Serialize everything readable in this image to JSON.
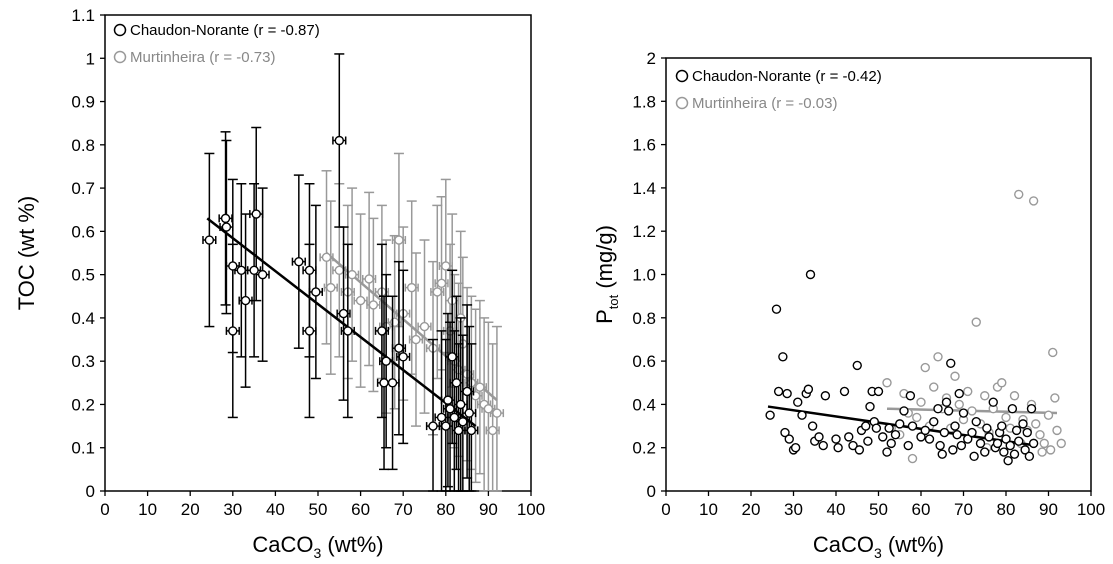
{
  "chart_data": [
    {
      "type": "scatter",
      "xlabel": "CaCO",
      "xlabel_sub": "3",
      "xlabel_unit": " (wt%)",
      "ylabel": "TOC (wt %)",
      "xlim": [
        0,
        100
      ],
      "ylim": [
        0,
        1.1
      ],
      "xticks": [
        "0",
        "10",
        "20",
        "30",
        "40",
        "50",
        "60",
        "70",
        "80",
        "90",
        "100"
      ],
      "yticks": [
        "0",
        "0.1",
        "0.2",
        "0.3",
        "0.4",
        "0.5",
        "0.6",
        "0.7",
        "0.8",
        "0.9",
        "1",
        "1.1"
      ],
      "grid": false,
      "legend_position": "top-left",
      "series": [
        {
          "name": "Chaudon-Norante (r = -0.87)",
          "color": "#000000",
          "fit": [
            [
              24,
              0.63
            ],
            [
              87,
              0.15
            ]
          ],
          "points": [
            [
              24.5,
              0.58,
              0.2
            ],
            [
              28.3,
              0.63,
              0.2
            ],
            [
              28.5,
              0.61,
              0.2
            ],
            [
              30,
              0.52,
              0.2
            ],
            [
              30,
              0.37,
              0.2
            ],
            [
              32,
              0.51,
              0.2
            ],
            [
              33,
              0.44,
              0.2
            ],
            [
              35,
              0.51,
              0.2
            ],
            [
              35.5,
              0.64,
              0.2
            ],
            [
              37,
              0.5,
              0.2
            ],
            [
              45.5,
              0.53,
              0.2
            ],
            [
              48,
              0.51,
              0.2
            ],
            [
              48,
              0.37,
              0.2
            ],
            [
              49.5,
              0.46,
              0.2
            ],
            [
              55,
              0.81,
              0.2
            ],
            [
              56,
              0.41,
              0.2
            ],
            [
              57,
              0.37,
              0.2
            ],
            [
              65,
              0.37,
              0.2
            ],
            [
              65.5,
              0.25,
              0.2
            ],
            [
              66,
              0.3,
              0.2
            ],
            [
              67.5,
              0.25,
              0.2
            ],
            [
              69,
              0.33,
              0.2
            ],
            [
              70,
              0.31,
              0.2
            ],
            [
              77,
              0.15,
              0.2
            ],
            [
              79,
              0.17,
              0.2
            ],
            [
              80,
              0.15,
              0.2
            ],
            [
              80.5,
              0.21,
              0.2
            ],
            [
              81,
              0.19,
              0.2
            ],
            [
              81.5,
              0.31,
              0.2
            ],
            [
              82,
              0.17,
              0.2
            ],
            [
              82.5,
              0.25,
              0.2
            ],
            [
              83,
              0.14,
              0.2
            ],
            [
              83.5,
              0.2,
              0.2
            ],
            [
              84,
              0.16,
              0.2
            ],
            [
              85,
              0.23,
              0.2
            ],
            [
              85.5,
              0.18,
              0.2
            ],
            [
              86,
              0.14,
              0.2
            ]
          ]
        },
        {
          "name": "Murtinheira (r = -0.73)",
          "color": "#999999",
          "fit": [
            [
              52,
              0.55
            ],
            [
              92,
              0.21
            ]
          ],
          "points": [
            [
              52,
              0.54,
              0.2
            ],
            [
              53,
              0.47,
              0.2
            ],
            [
              55,
              0.51,
              0.2
            ],
            [
              57,
              0.46,
              0.2
            ],
            [
              58,
              0.5,
              0.2
            ],
            [
              60,
              0.44,
              0.2
            ],
            [
              62,
              0.49,
              0.2
            ],
            [
              63,
              0.43,
              0.2
            ],
            [
              65,
              0.46,
              0.2
            ],
            [
              66,
              0.38,
              0.2
            ],
            [
              68,
              0.39,
              0.2
            ],
            [
              69,
              0.58,
              0.2
            ],
            [
              70,
              0.41,
              0.2
            ],
            [
              72,
              0.47,
              0.2
            ],
            [
              73,
              0.35,
              0.2
            ],
            [
              75,
              0.38,
              0.2
            ],
            [
              77,
              0.33,
              0.2
            ],
            [
              78,
              0.46,
              0.2
            ],
            [
              79,
              0.48,
              0.2
            ],
            [
              80,
              0.52,
              0.2
            ],
            [
              81,
              0.37,
              0.2
            ],
            [
              82,
              0.3,
              0.2
            ],
            [
              83,
              0.28,
              0.2
            ],
            [
              84,
              0.34,
              0.2
            ],
            [
              85,
              0.27,
              0.2
            ],
            [
              86,
              0.25,
              0.2
            ],
            [
              87,
              0.22,
              0.2
            ],
            [
              88,
              0.24,
              0.2
            ],
            [
              89,
              0.2,
              0.2
            ],
            [
              90,
              0.19,
              0.2
            ],
            [
              91,
              0.14,
              0.2
            ],
            [
              92,
              0.18,
              0.2
            ],
            [
              83.5,
              0.4,
              0.2
            ],
            [
              81.5,
              0.44,
              0.2
            ]
          ]
        }
      ]
    },
    {
      "type": "scatter",
      "xlabel": "CaCO",
      "xlabel_sub": "3",
      "xlabel_unit": " (wt%)",
      "ylabel": "P",
      "ylabel_sub": "tot",
      "ylabel_unit": " (mg/g)",
      "xlim": [
        0,
        100
      ],
      "ylim": [
        0,
        2
      ],
      "xticks": [
        "0",
        "10",
        "20",
        "30",
        "40",
        "50",
        "60",
        "70",
        "80",
        "90",
        "100"
      ],
      "yticks": [
        "0",
        "0.2",
        "0.4",
        "0.6",
        "0.8",
        "1.0",
        "1.2",
        "1.4",
        "1.6",
        "1.8",
        "2"
      ],
      "grid": false,
      "legend_position": "top-left",
      "series": [
        {
          "name": "Chaudon-Norante (r = -0.42)",
          "color": "#000000",
          "fit": [
            [
              24,
              0.39
            ],
            [
              87,
              0.21
            ]
          ],
          "points": [
            [
              24.5,
              0.35
            ],
            [
              26,
              0.84
            ],
            [
              26.5,
              0.46
            ],
            [
              27.5,
              0.62
            ],
            [
              28,
              0.27
            ],
            [
              28.5,
              0.45
            ],
            [
              29,
              0.24
            ],
            [
              30,
              0.19
            ],
            [
              30.5,
              0.2
            ],
            [
              31,
              0.41
            ],
            [
              32,
              0.35
            ],
            [
              33,
              0.45
            ],
            [
              33.5,
              0.47
            ],
            [
              34,
              1.0
            ],
            [
              34.5,
              0.3
            ],
            [
              35,
              0.23
            ],
            [
              36,
              0.25
            ],
            [
              37,
              0.21
            ],
            [
              37.5,
              0.44
            ],
            [
              40,
              0.24
            ],
            [
              40.5,
              0.2
            ],
            [
              42,
              0.46
            ],
            [
              43,
              0.25
            ],
            [
              44,
              0.21
            ],
            [
              45,
              0.58
            ],
            [
              45.5,
              0.19
            ],
            [
              46,
              0.28
            ],
            [
              47,
              0.3
            ],
            [
              47.5,
              0.23
            ],
            [
              48,
              0.39
            ],
            [
              48.5,
              0.46
            ],
            [
              49,
              0.32
            ],
            [
              49.5,
              0.29
            ],
            [
              50,
              0.46
            ],
            [
              51,
              0.25
            ],
            [
              52,
              0.18
            ],
            [
              52.5,
              0.29
            ],
            [
              53,
              0.22
            ],
            [
              54,
              0.26
            ],
            [
              55,
              0.31
            ],
            [
              56,
              0.37
            ],
            [
              57,
              0.21
            ],
            [
              57.5,
              0.44
            ],
            [
              58,
              0.3
            ],
            [
              60,
              0.25
            ],
            [
              61,
              0.28
            ],
            [
              62,
              0.24
            ],
            [
              63,
              0.32
            ],
            [
              64,
              0.38
            ],
            [
              64.5,
              0.21
            ],
            [
              65,
              0.17
            ],
            [
              65.5,
              0.27
            ],
            [
              66,
              0.41
            ],
            [
              66.5,
              0.37
            ],
            [
              67,
              0.59
            ],
            [
              67.5,
              0.19
            ],
            [
              68,
              0.3
            ],
            [
              68.5,
              0.26
            ],
            [
              69,
              0.45
            ],
            [
              69.5,
              0.21
            ],
            [
              70,
              0.36
            ],
            [
              71,
              0.24
            ],
            [
              72,
              0.27
            ],
            [
              72.5,
              0.16
            ],
            [
              73,
              0.32
            ],
            [
              74,
              0.22
            ],
            [
              75,
              0.18
            ],
            [
              75.5,
              0.29
            ],
            [
              76,
              0.25
            ],
            [
              77,
              0.41
            ],
            [
              77.5,
              0.2
            ],
            [
              78,
              0.22
            ],
            [
              78.5,
              0.27
            ],
            [
              79,
              0.3
            ],
            [
              79.5,
              0.18
            ],
            [
              80,
              0.24
            ],
            [
              80.5,
              0.14
            ],
            [
              81,
              0.21
            ],
            [
              81.5,
              0.38
            ],
            [
              82,
              0.17
            ],
            [
              82.5,
              0.28
            ],
            [
              83,
              0.23
            ],
            [
              84,
              0.31
            ],
            [
              84.5,
              0.19
            ],
            [
              85,
              0.27
            ],
            [
              85.5,
              0.16
            ],
            [
              86,
              0.38
            ],
            [
              86.5,
              0.22
            ]
          ]
        },
        {
          "name": "Murtinheira (r = -0.03)",
          "color": "#999999",
          "fit": [
            [
              52,
              0.38
            ],
            [
              92,
              0.36
            ]
          ],
          "points": [
            [
              52,
              0.5
            ],
            [
              53,
              0.29
            ],
            [
              55,
              0.26
            ],
            [
              56,
              0.45
            ],
            [
              57,
              0.36
            ],
            [
              58,
              0.15
            ],
            [
              59,
              0.34
            ],
            [
              60,
              0.41
            ],
            [
              61,
              0.57
            ],
            [
              62,
              0.3
            ],
            [
              63,
              0.48
            ],
            [
              64,
              0.62
            ],
            [
              65,
              0.38
            ],
            [
              66,
              0.43
            ],
            [
              67,
              0.29
            ],
            [
              68,
              0.53
            ],
            [
              69,
              0.4
            ],
            [
              70,
              0.33
            ],
            [
              71,
              0.46
            ],
            [
              72,
              0.37
            ],
            [
              73,
              0.78
            ],
            [
              74,
              0.31
            ],
            [
              75,
              0.44
            ],
            [
              76,
              0.27
            ],
            [
              77,
              0.38
            ],
            [
              78,
              0.48
            ],
            [
              79,
              0.5
            ],
            [
              80,
              0.34
            ],
            [
              81,
              0.29
            ],
            [
              82,
              0.44
            ],
            [
              83,
              1.37
            ],
            [
              84,
              0.33
            ],
            [
              85,
              0.28
            ],
            [
              86,
              0.4
            ],
            [
              86.5,
              1.34
            ],
            [
              87,
              0.31
            ],
            [
              88,
              0.26
            ],
            [
              89,
              0.22
            ],
            [
              90,
              0.35
            ],
            [
              90.5,
              0.19
            ],
            [
              91,
              0.64
            ],
            [
              91.5,
              0.43
            ],
            [
              92,
              0.28
            ],
            [
              93,
              0.22
            ],
            [
              75.5,
              0.2
            ],
            [
              83.5,
              0.22
            ],
            [
              88.5,
              0.18
            ]
          ]
        }
      ]
    }
  ]
}
